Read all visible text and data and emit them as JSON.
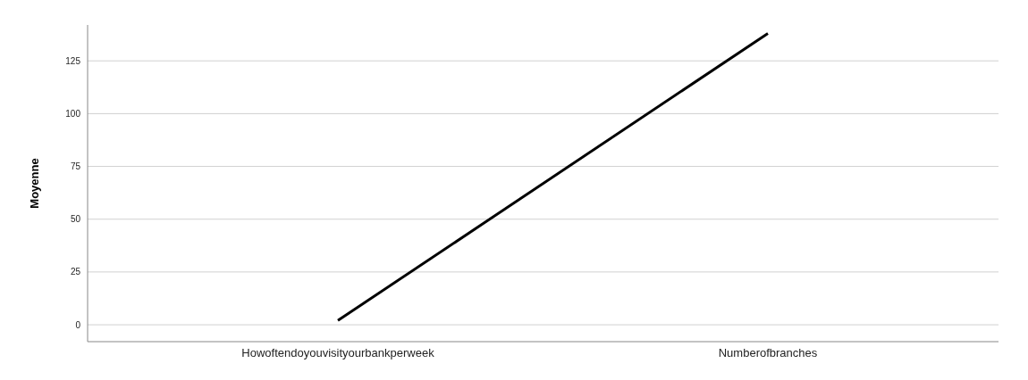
{
  "chart_data": {
    "type": "line",
    "ylabel": "Moyenne",
    "categories": [
      "Howoftendoyouvisityourbankperweek",
      "Numberofbranches"
    ],
    "series": [
      {
        "color": "#000000",
        "values": [
          2,
          138
        ]
      }
    ],
    "ylim": [
      -8,
      142
    ],
    "yticks": [
      0,
      25,
      50,
      75,
      100,
      125
    ],
    "grid": "y",
    "marker": "none"
  }
}
